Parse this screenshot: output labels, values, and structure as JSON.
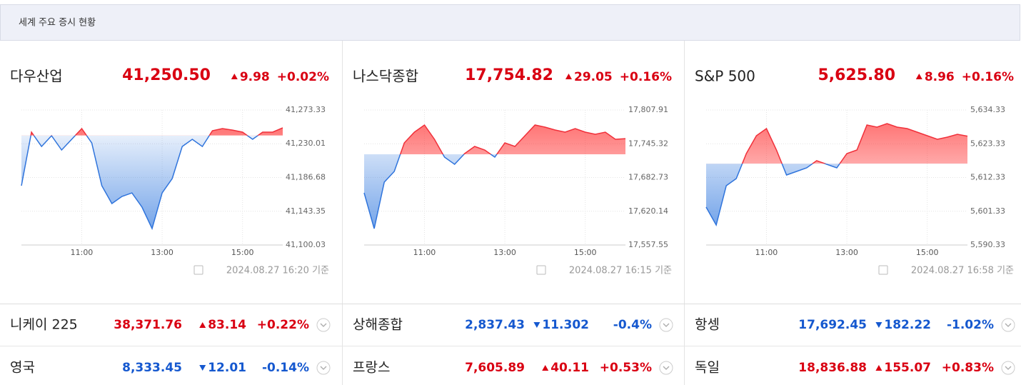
{
  "header": {
    "title": "세계 주요 증시 현황"
  },
  "panels": [
    {
      "name": "다우산업",
      "price": {
        "value": 41250.5,
        "label": "41,250.50"
      },
      "change": {
        "value": 9.98,
        "label": "9.98"
      },
      "pct": "+0.02%",
      "trend": "up",
      "timestamp": "2024.08.27 16:20 기준",
      "chart_data": {
        "type": "line",
        "x": [
          "09:30",
          "09:45",
          "10:00",
          "10:15",
          "10:30",
          "10:45",
          "11:00",
          "11:15",
          "11:30",
          "11:45",
          "12:00",
          "12:15",
          "12:30",
          "12:45",
          "13:00",
          "13:15",
          "13:30",
          "13:45",
          "14:00",
          "14:15",
          "14:30",
          "14:45",
          "15:00",
          "15:15",
          "15:30",
          "15:45",
          "16:00"
        ],
        "values": [
          41176.1,
          41244.9,
          41226.5,
          41240.3,
          41222,
          41235.7,
          41249.5,
          41231.1,
          41176.1,
          41153.2,
          41162.4,
          41166.9,
          41148.6,
          41121.1,
          41166.9,
          41185.3,
          41226.5,
          41235.7,
          41226.5,
          41246.7,
          41249.5,
          41247.6,
          41244.9,
          41235.7,
          41244.9,
          41244.9,
          41250.5
        ],
        "xlim": [
          "09:30",
          "16:00"
        ],
        "xticks": [
          "11:00",
          "13:00",
          "15:00"
        ],
        "ylim": [
          41100.03,
          41273.33
        ],
        "yticks": [
          {
            "value": 41100.03,
            "label": "41,100.03"
          },
          {
            "value": 41143.35,
            "label": "41,143.35"
          },
          {
            "value": 41186.68,
            "label": "41,186.68"
          },
          {
            "value": 41230.01,
            "label": "41,230.01"
          },
          {
            "value": 41273.33,
            "label": "41,273.33"
          }
        ]
      }
    },
    {
      "name": "나스닥종합",
      "price": {
        "value": 17754.82,
        "label": "17,754.82"
      },
      "change": {
        "value": 29.05,
        "label": "29.05"
      },
      "pct": "+0.16%",
      "trend": "up",
      "timestamp": "2024.08.27 16:15 기준",
      "chart_data": {
        "type": "line",
        "x": [
          "09:30",
          "09:45",
          "10:00",
          "10:15",
          "10:30",
          "10:45",
          "11:00",
          "11:15",
          "11:30",
          "11:45",
          "12:00",
          "12:15",
          "12:30",
          "12:45",
          "13:00",
          "13:15",
          "13:30",
          "13:45",
          "14:00",
          "14:15",
          "14:30",
          "14:45",
          "15:00",
          "15:15",
          "15:30",
          "15:45",
          "16:00"
        ],
        "values": [
          17654.25,
          17588.05,
          17674.15,
          17693.95,
          17746.95,
          17766.85,
          17780.05,
          17753.65,
          17720.45,
          17707.25,
          17727.15,
          17740.35,
          17733.75,
          17720.45,
          17746.95,
          17740.35,
          17760.25,
          17780.05,
          17776.15,
          17770.85,
          17766.85,
          17773.45,
          17766.85,
          17762.85,
          17766.85,
          17753.65,
          17754.82
        ],
        "xlim": [
          "09:30",
          "16:00"
        ],
        "xticks": [
          "11:00",
          "13:00",
          "15:00"
        ],
        "ylim": [
          17557.55,
          17807.91
        ],
        "yticks": [
          {
            "value": 17557.55,
            "label": "17,557.55"
          },
          {
            "value": 17620.14,
            "label": "17,620.14"
          },
          {
            "value": 17682.73,
            "label": "17,682.73"
          },
          {
            "value": 17745.32,
            "label": "17,745.32"
          },
          {
            "value": 17807.91,
            "label": "17,807.91"
          }
        ]
      }
    },
    {
      "name": "S&P 500",
      "price": {
        "value": 5625.8,
        "label": "5,625.80"
      },
      "change": {
        "value": 8.96,
        "label": "8.96"
      },
      "pct": "+0.16%",
      "trend": "up",
      "timestamp": "2024.08.27 16:58 기준",
      "chart_data": {
        "type": "line",
        "x": [
          "09:30",
          "09:45",
          "10:00",
          "10:15",
          "10:30",
          "10:45",
          "11:00",
          "11:15",
          "11:30",
          "11:45",
          "12:00",
          "12:15",
          "12:30",
          "12:45",
          "13:00",
          "13:15",
          "13:30",
          "13:45",
          "14:00",
          "14:15",
          "14:30",
          "14:45",
          "15:00",
          "15:15",
          "15:30",
          "15:45",
          "16:00"
        ],
        "values": [
          5602.67,
          5596.85,
          5609.65,
          5611.98,
          5620.13,
          5625.95,
          5628.28,
          5621.29,
          5613.14,
          5614.31,
          5615.47,
          5617.8,
          5616.64,
          5615.47,
          5620.13,
          5621.29,
          5629.44,
          5628.74,
          5629.91,
          5628.74,
          5628.28,
          5627.11,
          5625.95,
          5624.78,
          5625.48,
          5626.41,
          5625.8
        ],
        "xlim": [
          "09:30",
          "16:00"
        ],
        "xticks": [
          "11:00",
          "13:00",
          "15:00"
        ],
        "ylim": [
          5590.33,
          5634.33
        ],
        "yticks": [
          {
            "value": 5590.33,
            "label": "5,590.33"
          },
          {
            "value": 5601.33,
            "label": "5,601.33"
          },
          {
            "value": 5612.33,
            "label": "5,612.33"
          },
          {
            "value": 5623.33,
            "label": "5,623.33"
          },
          {
            "value": 5634.33,
            "label": "5,634.33"
          }
        ]
      }
    }
  ],
  "rows": [
    [
      {
        "name": "니케이 225",
        "price": "38,371.76",
        "change": "83.14",
        "pct": "+0.22%",
        "trend": "up"
      },
      {
        "name": "상해종합",
        "price": "2,837.43",
        "change": "11.302",
        "pct": "-0.4%",
        "trend": "down"
      },
      {
        "name": "항셍",
        "price": "17,692.45",
        "change": "182.22",
        "pct": "-1.02%",
        "trend": "down"
      }
    ],
    [
      {
        "name": "영국",
        "price": "8,333.45",
        "change": "12.01",
        "pct": "-0.14%",
        "trend": "down"
      },
      {
        "name": "프랑스",
        "price": "7,605.89",
        "change": "40.11",
        "pct": "+0.53%",
        "trend": "up"
      },
      {
        "name": "독일",
        "price": "18,836.88",
        "change": "155.07",
        "pct": "+0.83%",
        "trend": "up"
      }
    ]
  ]
}
